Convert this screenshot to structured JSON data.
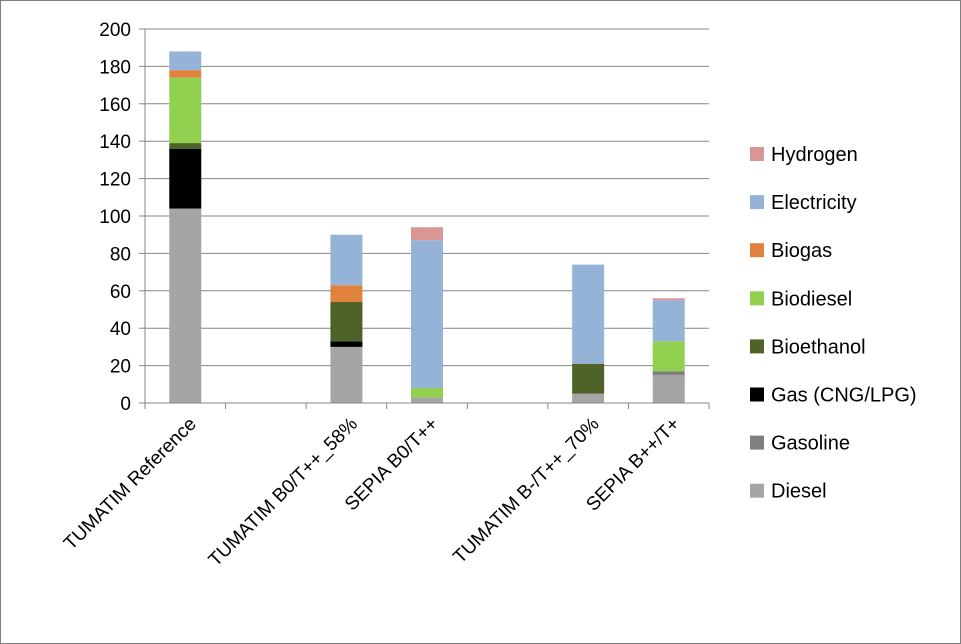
{
  "chart_data": {
    "type": "bar",
    "stacked": true,
    "title": "",
    "xlabel": "",
    "ylabel": "",
    "ylim": [
      0,
      200
    ],
    "yticks": [
      0,
      20,
      40,
      60,
      80,
      100,
      120,
      140,
      160,
      180,
      200
    ],
    "grid": true,
    "legend_position": "right",
    "categories": [
      "TUMATIM Reference",
      "",
      "TUMATIM B0/T++_58%",
      "SEPIA B0/T++",
      "",
      "TUMATIM B-/T++_70%",
      "SEPIA B++/T+"
    ],
    "category_labels": [
      "TUMATIM Reference",
      "TUMATIM B0/T++_58%",
      "SEPIA B0/T++",
      "TUMATIM B-/T++_70%",
      "SEPIA B++/T+"
    ],
    "category_label_index": [
      0,
      2,
      3,
      5,
      6
    ],
    "series": [
      {
        "name": "Diesel",
        "color": "#a5a5a5",
        "values": [
          104,
          0,
          30,
          3,
          0,
          5,
          15
        ]
      },
      {
        "name": "Gasoline",
        "color": "#7f7f7f",
        "values": [
          0,
          0,
          0,
          0,
          0,
          0,
          2
        ]
      },
      {
        "name": "Gas (CNG/LPG)",
        "color": "#000000",
        "values": [
          32,
          0,
          3,
          0,
          0,
          0,
          0
        ]
      },
      {
        "name": "Bioethanol",
        "color": "#4f6228",
        "values": [
          3,
          0,
          21,
          0,
          0,
          16,
          0
        ]
      },
      {
        "name": "Biodiesel",
        "color": "#92d050",
        "values": [
          35,
          0,
          0,
          5,
          0,
          0,
          16
        ]
      },
      {
        "name": "Biogas",
        "color": "#e0823d",
        "values": [
          4,
          0,
          9,
          0,
          0,
          0,
          0
        ]
      },
      {
        "name": "Electricity",
        "color": "#95b3d7",
        "values": [
          10,
          0,
          27,
          79,
          0,
          53,
          22
        ]
      },
      {
        "name": "Hydrogen",
        "color": "#da9694",
        "values": [
          0,
          0,
          0,
          7,
          0,
          0,
          1
        ]
      }
    ]
  }
}
